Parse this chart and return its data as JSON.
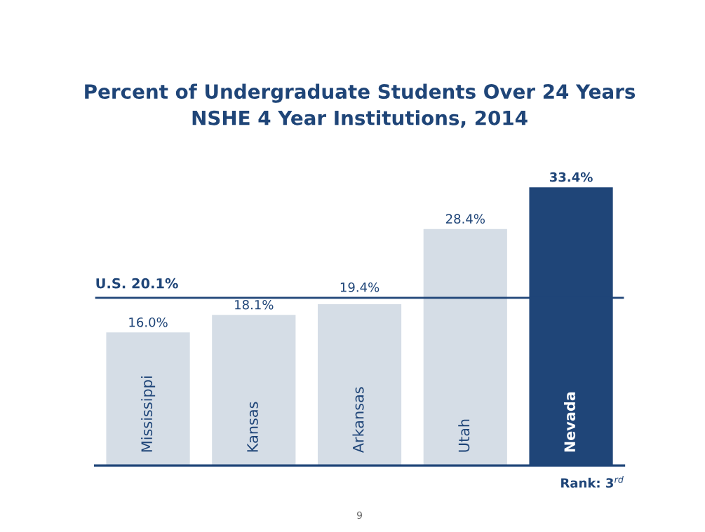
{
  "chart_data": {
    "type": "bar",
    "title": "Percent of Undergraduate Students Over 24 Years\nNSHE 4 Year Institutions, 2014",
    "categories": [
      "Mississippi",
      "Kansas",
      "Arkansas",
      "Utah",
      "Nevada"
    ],
    "values": [
      16.0,
      18.1,
      19.4,
      28.4,
      33.4
    ],
    "colors": [
      "#d5dde6",
      "#d5dde6",
      "#d5dde6",
      "#d5dde6",
      "#1f4578"
    ],
    "value_labels": [
      "16.0%",
      "18.1%",
      "19.4%",
      "28.4%",
      "33.4%"
    ],
    "ref_lines": [
      {
        "axis": "y",
        "value": 20.1,
        "label": "U.S. 20.1%",
        "color": "#1f4578"
      }
    ],
    "annotations": [
      "Rank: 3$^{rd}$",
      "9"
    ],
    "tick_labels": "x"
  }
}
